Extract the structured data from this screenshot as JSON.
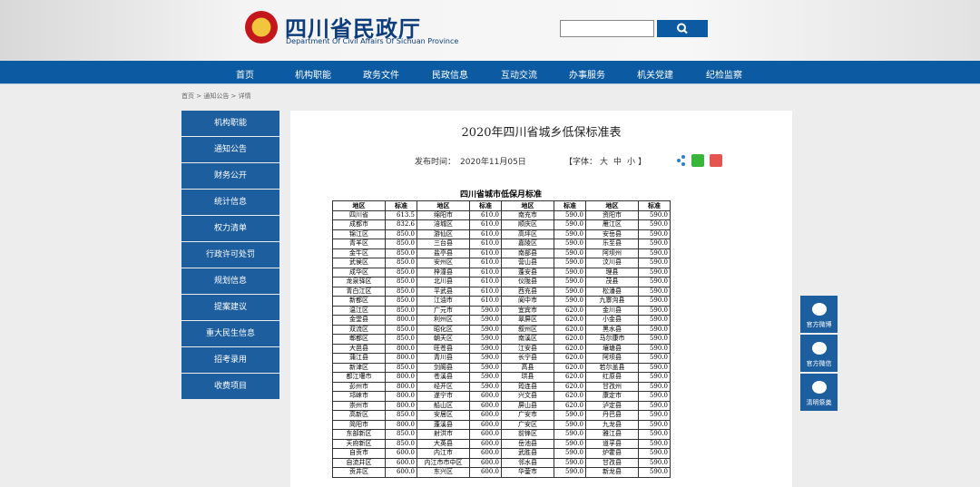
{
  "header": {
    "title": "四川省民政厅",
    "subtitle": "Department Of Civil Affairs Of Sichuan Province"
  },
  "nav": [
    "首页",
    "机构职能",
    "政务文件",
    "民政信息",
    "互动交流",
    "办事服务",
    "机关党建",
    "纪检监察"
  ],
  "breadcrumb": [
    "首页",
    "通知公告",
    "详情"
  ],
  "sidebar": [
    "机构职能",
    "通知公告",
    "财务公开",
    "统计信息",
    "权力清单",
    "行政许可处罚",
    "规划信息",
    "提案建议",
    "重大民生信息",
    "招考录用",
    "收费项目"
  ],
  "article": {
    "title": "2020年四川省城乡低保标准表",
    "date_label": "发布时间：",
    "date": "2020年11月05日",
    "font_label": "【字体：",
    "font_sizes": [
      "大",
      "中",
      "小"
    ],
    "font_end": "】"
  },
  "table": {
    "caption": "四川省城市低保月标准",
    "header": [
      "地区",
      "标准",
      "地区",
      "标准",
      "地区",
      "标准",
      "地区",
      "标准"
    ],
    "rows": [
      [
        "四川省",
        "613.5",
        "绵阳市",
        "610.0",
        "南充市",
        "590.0",
        "资阳市",
        "590.0"
      ],
      [
        "成都市",
        "832.6",
        "涪城区",
        "610.0",
        "顺庆区",
        "590.0",
        "雁江区",
        "590.0"
      ],
      [
        "锦江区",
        "850.0",
        "游仙区",
        "610.0",
        "高坪区",
        "590.0",
        "安岳县",
        "590.0"
      ],
      [
        "青羊区",
        "850.0",
        "三台县",
        "610.0",
        "嘉陵区",
        "590.0",
        "乐至县",
        "590.0"
      ],
      [
        "金牛区",
        "850.0",
        "盐亭县",
        "610.0",
        "南部县",
        "590.0",
        "阿坝州",
        "590.0"
      ],
      [
        "武侯区",
        "850.0",
        "安州区",
        "610.0",
        "营山县",
        "590.0",
        "汶川县",
        "590.0"
      ],
      [
        "成华区",
        "850.0",
        "梓潼县",
        "610.0",
        "蓬安县",
        "590.0",
        "理县",
        "590.0"
      ],
      [
        "龙泉驿区",
        "850.0",
        "北川县",
        "610.0",
        "仪陇县",
        "590.0",
        "茂县",
        "590.0"
      ],
      [
        "青白江区",
        "850.0",
        "平武县",
        "610.0",
        "西充县",
        "590.0",
        "松潘县",
        "590.0"
      ],
      [
        "新都区",
        "850.0",
        "江油市",
        "610.0",
        "阆中市",
        "590.0",
        "九寨沟县",
        "590.0"
      ],
      [
        "温江区",
        "850.0",
        "广元市",
        "590.0",
        "宜宾市",
        "620.0",
        "金川县",
        "590.0"
      ],
      [
        "金堂县",
        "800.0",
        "利州区",
        "590.0",
        "翠屏区",
        "620.0",
        "小金县",
        "590.0"
      ],
      [
        "双流区",
        "850.0",
        "昭化区",
        "590.0",
        "叙州区",
        "620.0",
        "黑水县",
        "590.0"
      ],
      [
        "郫都区",
        "850.0",
        "朝天区",
        "590.0",
        "南溪区",
        "620.0",
        "马尔康市",
        "590.0"
      ],
      [
        "大邑县",
        "800.0",
        "旺苍县",
        "590.0",
        "江安县",
        "620.0",
        "壤塘县",
        "590.0"
      ],
      [
        "蒲江县",
        "800.0",
        "青川县",
        "590.0",
        "长宁县",
        "620.0",
        "阿坝县",
        "590.0"
      ],
      [
        "新津区",
        "850.0",
        "剑阁县",
        "590.0",
        "高县",
        "620.0",
        "若尔盖县",
        "590.0"
      ],
      [
        "都江堰市",
        "800.0",
        "苍溪县",
        "590.0",
        "珙县",
        "620.0",
        "红原县",
        "590.0"
      ],
      [
        "彭州市",
        "800.0",
        "经开区",
        "590.0",
        "筠连县",
        "620.0",
        "甘孜州",
        "590.0"
      ],
      [
        "邛崃市",
        "800.0",
        "遂宁市",
        "600.0",
        "兴文县",
        "620.0",
        "康定市",
        "590.0"
      ],
      [
        "崇州市",
        "800.0",
        "船山区",
        "600.0",
        "屏山县",
        "620.0",
        "泸定县",
        "590.0"
      ],
      [
        "高新区",
        "850.0",
        "安居区",
        "600.0",
        "广安市",
        "590.0",
        "丹巴县",
        "590.0"
      ],
      [
        "简阳市",
        "800.0",
        "蓬溪县",
        "600.0",
        "广安区",
        "590.0",
        "九龙县",
        "590.0"
      ],
      [
        "东部新区",
        "850.0",
        "射洪市",
        "600.0",
        "前锋区",
        "590.0",
        "雅江县",
        "590.0"
      ],
      [
        "天府新区",
        "850.0",
        "大英县",
        "600.0",
        "岳池县",
        "590.0",
        "道孚县",
        "590.0"
      ],
      [
        "自贡市",
        "600.0",
        "内江市",
        "600.0",
        "武胜县",
        "590.0",
        "炉霍县",
        "590.0"
      ],
      [
        "自流井区",
        "600.0",
        "内江市市中区",
        "600.0",
        "邻水县",
        "590.0",
        "甘孜县",
        "590.0"
      ],
      [
        "贡井区",
        "600.0",
        "东兴区",
        "600.0",
        "华蓥市",
        "590.0",
        "新龙县",
        "590.0"
      ]
    ]
  },
  "float": [
    "官方微博",
    "官方微信",
    "清明祭奠"
  ]
}
